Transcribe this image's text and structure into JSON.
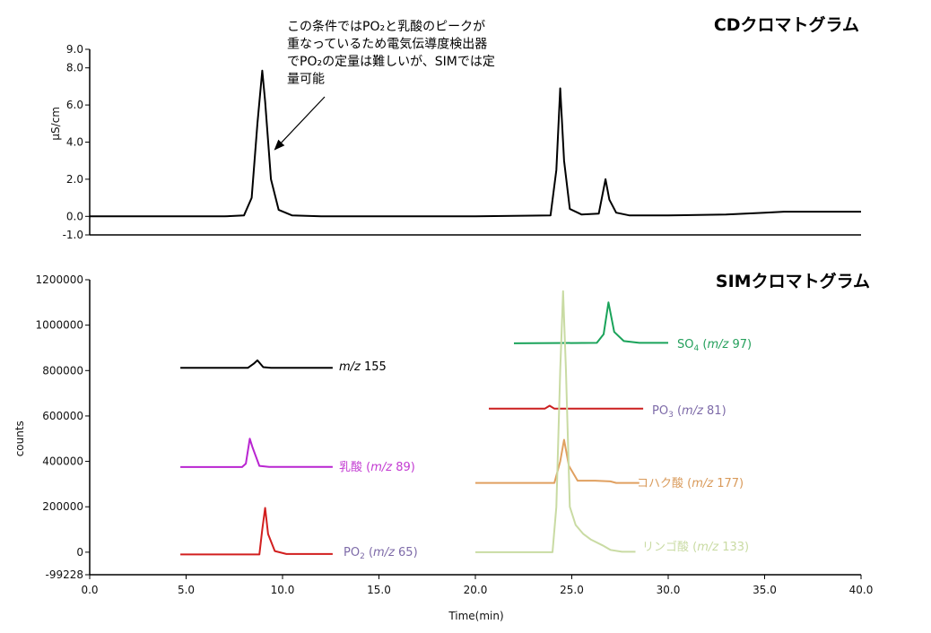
{
  "chart_data": [
    {
      "type": "line",
      "title": "CDクロマトグラム",
      "ylabel": "µS/cm",
      "ylim": [
        -1.0,
        9.0
      ],
      "yticks": [
        "-1.0",
        "0.0",
        "2.0",
        "4.0",
        "6.0",
        "8.0",
        "9.0"
      ],
      "xlim": [
        0.0,
        40.0
      ],
      "grid": false,
      "annotation": {
        "lines": [
          "この条件ではPO₂と乳酸のピークが",
          "重なっているため電気伝導度検出器",
          "でPO₂の定量は難しいが、SIMでは定",
          "量可能"
        ],
        "arrow_to": [
          9.6,
          3.6
        ]
      },
      "series": [
        {
          "color": "#000000",
          "x": [
            0.0,
            7.0,
            8.0,
            8.4,
            8.7,
            8.95,
            9.1,
            9.4,
            9.8,
            10.5,
            12.0,
            20.0,
            23.9,
            24.2,
            24.4,
            24.6,
            24.9,
            25.5,
            26.4,
            26.75,
            26.95,
            27.3,
            28.0,
            30.0,
            33.0,
            35.0,
            36.0,
            40.0
          ],
          "y": [
            0.0,
            0.0,
            0.05,
            1.0,
            5.0,
            7.85,
            6.2,
            2.0,
            0.35,
            0.05,
            0.0,
            0.0,
            0.05,
            2.5,
            6.9,
            3.0,
            0.4,
            0.1,
            0.15,
            2.0,
            0.9,
            0.2,
            0.05,
            0.05,
            0.1,
            0.2,
            0.25,
            0.25
          ]
        }
      ]
    },
    {
      "type": "line",
      "title": "SIMクロマトグラム",
      "ylabel": "counts",
      "xlabel": "Time(min)",
      "ylim": [
        -99228,
        1200000
      ],
      "yticks": [
        "-99228",
        "0",
        "200000",
        "400000",
        "600000",
        "800000",
        "1000000",
        "1200000"
      ],
      "xlim": [
        0.0,
        40.0
      ],
      "xticks": [
        "0.0",
        "5.0",
        "10.0",
        "15.0",
        "20.0",
        "25.0",
        "30.0",
        "35.0",
        "40.0"
      ],
      "grid": false,
      "series": [
        {
          "name": "m/z 155",
          "label_parts": [
            {
              "text": "m/z",
              "italic": true
            },
            {
              "text": " 155"
            }
          ],
          "color": "#000000",
          "x": [
            4.7,
            8.2,
            8.5,
            8.7,
            9.0,
            9.4,
            12.6
          ],
          "y": [
            812000,
            812000,
            830000,
            845000,
            815000,
            812000,
            812000
          ]
        },
        {
          "name": "乳酸 (m/z 89)",
          "label_parts": [
            {
              "text": "乳酸 ("
            },
            {
              "text": "m/z",
              "italic": true
            },
            {
              "text": " 89)"
            }
          ],
          "color": "#b925d1",
          "x": [
            4.7,
            7.9,
            8.1,
            8.3,
            8.45,
            8.8,
            9.3,
            12.6
          ],
          "y": [
            375000,
            375000,
            390000,
            500000,
            460000,
            380000,
            376000,
            376000
          ],
          "label_color": "#c33bd2"
        },
        {
          "name": "PO₂ (m/z 65)",
          "label_parts": [
            {
              "text": "PO"
            },
            {
              "text": "2",
              "sub": true
            },
            {
              "text": " ("
            },
            {
              "text": "m/z",
              "italic": true
            },
            {
              "text": " 65)"
            }
          ],
          "color": "#d21f1f",
          "x": [
            4.7,
            8.8,
            8.95,
            9.1,
            9.25,
            9.6,
            10.2,
            12.6
          ],
          "y": [
            -10000,
            -10000,
            100000,
            195000,
            80000,
            5000,
            -8000,
            -8000
          ],
          "label_color": "#7d6aa8"
        },
        {
          "name": "SO₄ (m/z 97)",
          "label_parts": [
            {
              "text": "SO"
            },
            {
              "text": "4",
              "sub": true
            },
            {
              "text": " ("
            },
            {
              "text": "m/z",
              "italic": true
            },
            {
              "text": " 97)"
            }
          ],
          "color": "#1aa35a",
          "x": [
            22.0,
            26.3,
            26.65,
            26.9,
            27.2,
            27.7,
            28.5,
            30.0
          ],
          "y": [
            920000,
            922000,
            960000,
            1100000,
            970000,
            930000,
            922000,
            922000
          ],
          "label_color": "#25a05c"
        },
        {
          "name": "PO₃ (m/z 81)",
          "label_parts": [
            {
              "text": "PO"
            },
            {
              "text": "3",
              "sub": true
            },
            {
              "text": " ("
            },
            {
              "text": "m/z",
              "italic": true
            },
            {
              "text": " 81)"
            }
          ],
          "color": "#cc1f1f",
          "x": [
            20.7,
            23.6,
            23.85,
            24.1,
            28.7
          ],
          "y": [
            632000,
            632000,
            645000,
            632000,
            632000
          ],
          "label_color": "#7d6aa8"
        },
        {
          "name": "コハク酸 (m/z 177)",
          "label_parts": [
            {
              "text": "コハク酸 ("
            },
            {
              "text": "m/z",
              "italic": true
            },
            {
              "text": " 177)"
            }
          ],
          "color": "#e0a060",
          "x": [
            20.0,
            24.1,
            24.4,
            24.6,
            24.85,
            25.3,
            26.2,
            27.0,
            27.3,
            28.5
          ],
          "y": [
            305000,
            305000,
            400000,
            495000,
            380000,
            315000,
            315000,
            312000,
            305000,
            305000
          ],
          "label_color": "#d99a5a"
        },
        {
          "name": "リンゴ酸 (m/z 133)",
          "label_parts": [
            {
              "text": "リンゴ酸 ("
            },
            {
              "text": "m/z",
              "italic": true
            },
            {
              "text": " 133)"
            }
          ],
          "color": "#c9dba3",
          "x": [
            20.0,
            24.0,
            24.2,
            24.4,
            24.55,
            24.7,
            24.9,
            25.2,
            25.6,
            26.0,
            26.6,
            27.0,
            27.6,
            28.3
          ],
          "y": [
            0,
            0,
            200000,
            800000,
            1150000,
            800000,
            200000,
            120000,
            80000,
            55000,
            30000,
            10000,
            2000,
            2000
          ],
          "label_color": "#c9dba3"
        }
      ]
    }
  ]
}
